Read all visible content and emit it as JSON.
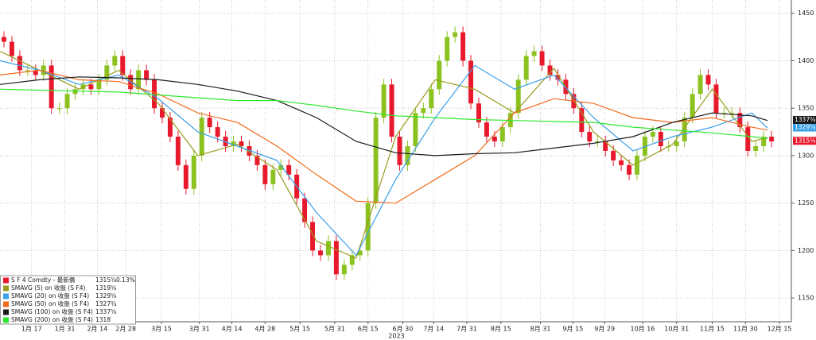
{
  "chart_data": {
    "type": "candlestick",
    "xlim": [
      0,
      100
    ],
    "xticks": [
      {
        "value": 4.0,
        "label": "1月 17"
      },
      {
        "value": 8.2,
        "label": "1月 31"
      },
      {
        "value": 12.3,
        "label": "2月 14"
      },
      {
        "value": 15.9,
        "label": "2月 28"
      },
      {
        "value": 20.4,
        "label": "3月 15"
      },
      {
        "value": 25.2,
        "label": "3月 31"
      },
      {
        "value": 29.3,
        "label": "4月 14"
      },
      {
        "value": 33.5,
        "label": "4月 28"
      },
      {
        "value": 37.9,
        "label": "5月 15"
      },
      {
        "value": 42.3,
        "label": "5月 31"
      },
      {
        "value": 46.5,
        "label": "6月 15"
      },
      {
        "value": 50.9,
        "label": "6月 30"
      },
      {
        "value": 54.8,
        "label": "7月 14"
      },
      {
        "value": 59.0,
        "label": "7月 31"
      },
      {
        "value": 63.3,
        "label": "8月 15"
      },
      {
        "value": 68.3,
        "label": "8月 31"
      },
      {
        "value": 72.4,
        "label": "9月 15"
      },
      {
        "value": 76.4,
        "label": "9月 29"
      },
      {
        "value": 81.2,
        "label": "10月 16"
      },
      {
        "value": 85.5,
        "label": "10月 31"
      },
      {
        "value": 90.0,
        "label": "11月 15"
      },
      {
        "value": 94.2,
        "label": "11月 30"
      },
      {
        "value": 98.5,
        "label": "12月 15"
      }
    ],
    "year_label": "2023",
    "ylim": [
      1125,
      1464
    ],
    "yticks": [
      1150,
      1200,
      1250,
      1300,
      1350,
      1400,
      1450
    ],
    "grid": true,
    "candles": {
      "name": "S F 4 Comdty - 最新價",
      "color": "#e8192c",
      "color_up": "#8cc21f",
      "color_down": "#e8192c",
      "last": 1315.625,
      "last_label": "1315⅝",
      "change": "0.13%",
      "tag": true,
      "x": [
        0.5,
        1.5,
        2.5,
        3.5,
        4.5,
        5.5,
        6.5,
        7.5,
        8.5,
        9.5,
        10.5,
        11.5,
        12.5,
        13.5,
        14.5,
        15.5,
        16.5,
        17.5,
        18.5,
        19.5,
        20.5,
        21.5,
        22.5,
        23.5,
        24.5,
        25.5,
        26.5,
        27.5,
        28.5,
        29.5,
        30.5,
        31.5,
        32.5,
        33.5,
        34.5,
        35.5,
        36.5,
        37.5,
        38.5,
        39.5,
        40.5,
        41.5,
        42.5,
        43.5,
        44.5,
        45.5,
        46.5,
        47.5,
        48.5,
        49.5,
        50.5,
        51.5,
        52.5,
        53.5,
        54.5,
        55.5,
        56.5,
        57.5,
        58.5,
        59.5,
        60.5,
        61.5,
        62.5,
        63.5,
        64.5,
        65.5,
        66.5,
        67.5,
        68.5,
        69.5,
        70.5,
        71.5,
        72.5,
        73.5,
        74.5,
        75.5,
        76.5,
        77.5,
        78.5,
        79.5,
        80.5,
        81.5,
        82.5,
        83.5,
        84.5,
        85.5,
        86.5,
        87.5,
        88.5,
        89.5,
        90.5,
        91.5,
        92.5,
        93.5,
        94.5,
        95.5,
        96.5,
        97.5
      ],
      "open": [
        1425,
        1420,
        1405,
        1390,
        1390,
        1385,
        1395,
        1350,
        1350,
        1365,
        1370,
        1375,
        1370,
        1380,
        1395,
        1405,
        1385,
        1370,
        1390,
        1380,
        1350,
        1340,
        1320,
        1290,
        1265,
        1300,
        1340,
        1330,
        1320,
        1310,
        1315,
        1310,
        1300,
        1290,
        1270,
        1285,
        1290,
        1280,
        1255,
        1230,
        1200,
        1195,
        1210,
        1175,
        1185,
        1195,
        1200,
        1250,
        1340,
        1375,
        1320,
        1290,
        1310,
        1345,
        1350,
        1370,
        1400,
        1425,
        1430,
        1400,
        1355,
        1335,
        1320,
        1315,
        1330,
        1345,
        1380,
        1405,
        1410,
        1395,
        1385,
        1380,
        1365,
        1350,
        1325,
        1315,
        1315,
        1305,
        1295,
        1290,
        1280,
        1300,
        1320,
        1325,
        1310,
        1310,
        1315,
        1340,
        1365,
        1385,
        1375,
        1345,
        1345,
        1345,
        1330,
        1305,
        1310,
        1320
      ],
      "high": [
        1431,
        1426,
        1411,
        1396,
        1396,
        1401,
        1401,
        1356,
        1371,
        1376,
        1381,
        1381,
        1386,
        1401,
        1411,
        1411,
        1391,
        1396,
        1396,
        1386,
        1356,
        1346,
        1326,
        1296,
        1306,
        1346,
        1346,
        1336,
        1326,
        1321,
        1321,
        1316,
        1306,
        1296,
        1291,
        1296,
        1296,
        1286,
        1261,
        1236,
        1206,
        1216,
        1216,
        1191,
        1201,
        1206,
        1256,
        1346,
        1381,
        1381,
        1326,
        1316,
        1351,
        1356,
        1376,
        1406,
        1431,
        1436,
        1436,
        1406,
        1361,
        1341,
        1326,
        1336,
        1351,
        1386,
        1411,
        1416,
        1416,
        1401,
        1391,
        1386,
        1371,
        1356,
        1331,
        1321,
        1321,
        1311,
        1301,
        1296,
        1306,
        1326,
        1331,
        1331,
        1316,
        1321,
        1346,
        1371,
        1391,
        1391,
        1381,
        1351,
        1351,
        1351,
        1336,
        1316,
        1326,
        1326
      ],
      "low": [
        1414,
        1399,
        1384,
        1384,
        1379,
        1379,
        1344,
        1344,
        1344,
        1359,
        1364,
        1364,
        1364,
        1374,
        1389,
        1379,
        1364,
        1364,
        1374,
        1344,
        1334,
        1314,
        1284,
        1259,
        1259,
        1294,
        1324,
        1314,
        1304,
        1304,
        1304,
        1294,
        1284,
        1264,
        1264,
        1279,
        1274,
        1249,
        1224,
        1194,
        1189,
        1189,
        1169,
        1169,
        1179,
        1189,
        1194,
        1244,
        1334,
        1314,
        1284,
        1284,
        1304,
        1339,
        1344,
        1364,
        1394,
        1419,
        1394,
        1349,
        1329,
        1314,
        1309,
        1309,
        1324,
        1339,
        1374,
        1399,
        1389,
        1379,
        1374,
        1359,
        1344,
        1319,
        1309,
        1309,
        1299,
        1289,
        1284,
        1274,
        1274,
        1294,
        1314,
        1304,
        1304,
        1304,
        1309,
        1334,
        1359,
        1369,
        1339,
        1339,
        1339,
        1324,
        1299,
        1299,
        1304,
        1309
      ],
      "close": [
        1420,
        1405,
        1390,
        1390,
        1385,
        1395,
        1350,
        1350,
        1365,
        1370,
        1375,
        1370,
        1380,
        1395,
        1405,
        1385,
        1370,
        1390,
        1380,
        1350,
        1340,
        1320,
        1290,
        1265,
        1300,
        1340,
        1330,
        1320,
        1310,
        1315,
        1310,
        1300,
        1290,
        1270,
        1285,
        1290,
        1280,
        1255,
        1230,
        1200,
        1195,
        1210,
        1175,
        1185,
        1195,
        1200,
        1250,
        1340,
        1375,
        1320,
        1290,
        1310,
        1345,
        1350,
        1370,
        1400,
        1425,
        1430,
        1400,
        1355,
        1335,
        1320,
        1315,
        1330,
        1345,
        1380,
        1405,
        1410,
        1395,
        1385,
        1380,
        1365,
        1350,
        1325,
        1315,
        1315,
        1305,
        1295,
        1290,
        1280,
        1300,
        1320,
        1325,
        1310,
        1310,
        1315,
        1340,
        1365,
        1385,
        1375,
        1345,
        1345,
        1345,
        1330,
        1305,
        1310,
        1320,
        1315
      ]
    },
    "line_x": [
      0,
      5,
      10,
      15,
      20,
      25,
      30,
      35,
      40,
      45,
      50,
      55,
      60,
      65,
      70,
      75,
      80,
      85,
      90,
      95,
      97
    ],
    "series": [
      {
        "name": "SMAVG (5)  on 收盤 (S F4)",
        "color": "#9a9a1e",
        "last": 1319.625,
        "last_label": "1319⅝",
        "tag": false,
        "values": [
          1410,
          1390,
          1370,
          1390,
          1355,
          1300,
          1312,
          1285,
          1210,
          1192,
          1320,
          1380,
          1370,
          1345,
          1392,
          1325,
          1290,
          1312,
          1370,
          1315,
          1319
        ]
      },
      {
        "name": "SMAVG (20)  on 收盤 (S F4)",
        "color": "#3aa0e8",
        "last": 1329.625,
        "last_label": "1329⅝",
        "tag": true,
        "values": [
          1400,
          1390,
          1375,
          1385,
          1360,
          1325,
          1310,
          1295,
          1240,
          1195,
          1275,
          1340,
          1395,
          1370,
          1385,
          1340,
          1305,
          1320,
          1330,
          1345,
          1329
        ]
      },
      {
        "name": "SMAVG (50)  on 收盤 (S F4)",
        "color": "#f26b1d",
        "last": 1327.75,
        "last_label": "1327¾",
        "tag": false,
        "values": [
          1385,
          1390,
          1380,
          1378,
          1365,
          1345,
          1335,
          1310,
          1280,
          1252,
          1250,
          1275,
          1300,
          1345,
          1360,
          1355,
          1340,
          1335,
          1340,
          1330,
          1327
        ]
      },
      {
        "name": "SMAVG (100)  on 收盤 (S F4)",
        "color": "#1a1a1a",
        "last": 1337.625,
        "last_label": "1337⅝",
        "tag": true,
        "values": [
          1375,
          1380,
          1383,
          1382,
          1380,
          1375,
          1368,
          1358,
          1340,
          1315,
          1303,
          1300,
          1302,
          1303,
          1308,
          1313,
          1320,
          1335,
          1345,
          1342,
          1337
        ]
      },
      {
        "name": "SMAVG (200)  on 收盤 (S F4)",
        "color": "#2ee82e",
        "last": 1318,
        "tag": false,
        "values": [
          1370,
          1369,
          1368,
          1367,
          1364,
          1361,
          1358,
          1358,
          1353,
          1347,
          1342,
          1340,
          1338,
          1337,
          1336,
          1335,
          1330,
          1327,
          1324,
          1320,
          1318
        ]
      }
    ]
  }
}
